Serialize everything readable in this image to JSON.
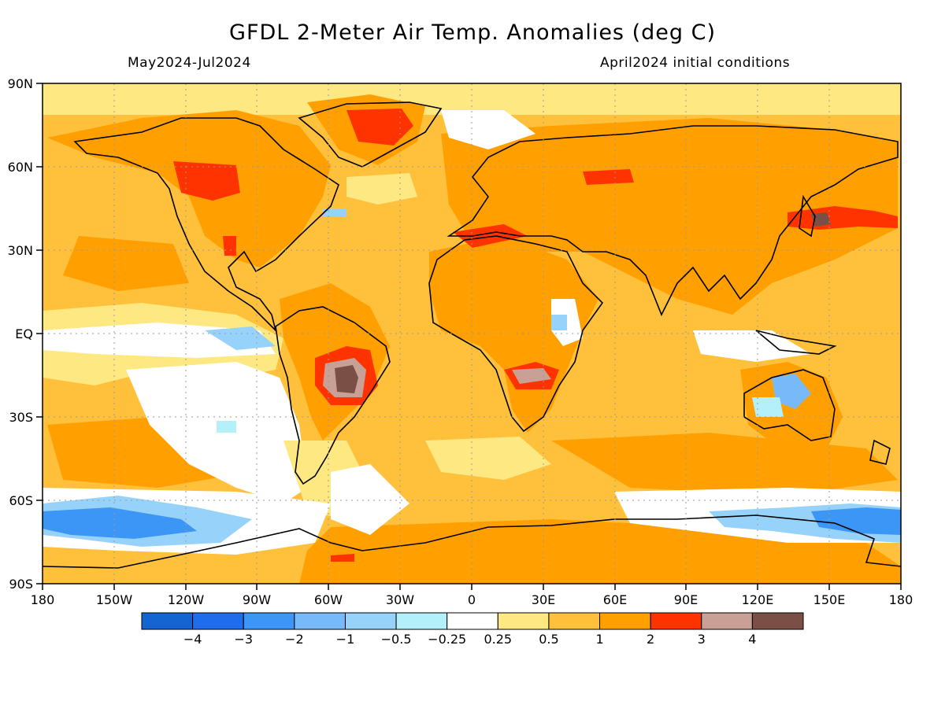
{
  "title": "GFDL 2-Meter Air Temp. Anomalies (deg C)",
  "subtitle_left": "May2024-Jul2024",
  "subtitle_right": "April2024 initial conditions",
  "lat_labels": [
    "90N",
    "60N",
    "30N",
    "EQ",
    "30S",
    "60S",
    "90S"
  ],
  "lon_labels": [
    "180",
    "150W",
    "120W",
    "90W",
    "60W",
    "30W",
    "0",
    "30E",
    "60E",
    "90E",
    "120E",
    "150E",
    "180"
  ],
  "colorbar": {
    "colors": [
      "#1464d2",
      "#1e6eeb",
      "#3c96f5",
      "#78b9fa",
      "#96d2fa",
      "#b4f0fa",
      "#ffffff",
      "#fee882",
      "#ffc03c",
      "#ffa000",
      "#ff3300",
      "#c8a095",
      "#7a4f45"
    ],
    "labels": [
      "−4",
      "−3",
      "−2",
      "−1",
      "−0.5",
      "−0.25",
      "0.25",
      "0.5",
      "1",
      "2",
      "3",
      "4"
    ]
  }
}
